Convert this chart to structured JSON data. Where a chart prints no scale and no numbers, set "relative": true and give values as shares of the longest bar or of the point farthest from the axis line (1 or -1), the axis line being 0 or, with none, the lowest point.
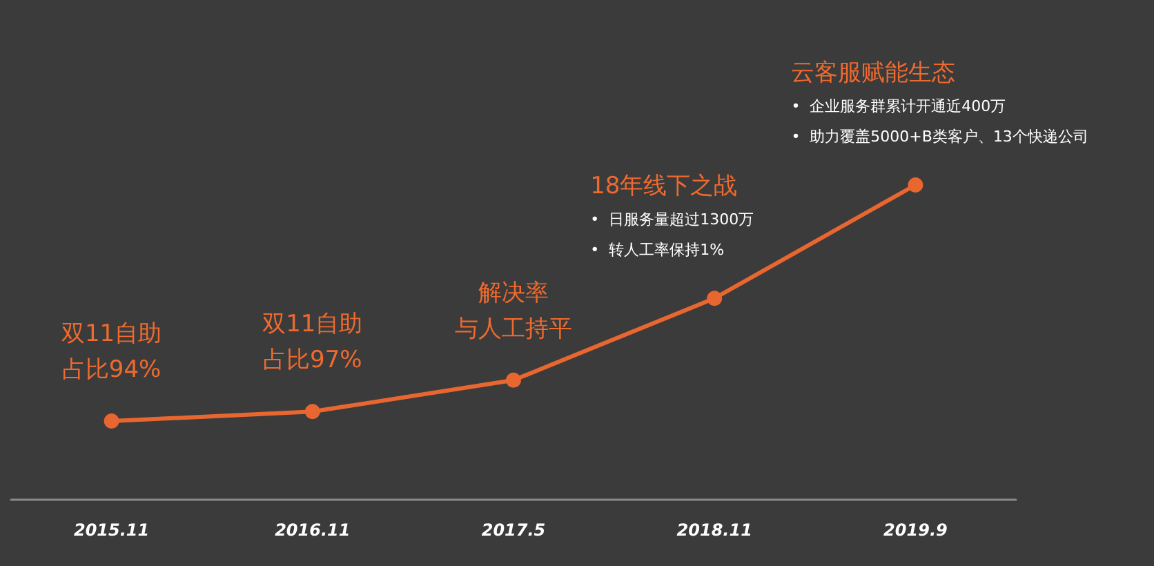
{
  "chart_data": {
    "type": "line",
    "relative": true,
    "marker": "circle",
    "line_style": "solid",
    "grid": false,
    "categories": [
      "2015.11",
      "2016.11",
      "2017.5",
      "2018.11",
      "2019.9"
    ],
    "series": [
      {
        "color": "#e8662f",
        "values": [
          0.25,
          0.28,
          0.38,
          0.64,
          1
        ]
      }
    ],
    "annotations": [
      "双11自助",
      "占比94%",
      "双11自助",
      "占比97%",
      "解决率",
      "与人工持平",
      "18年线下之战",
      "•  日服务量超过1300万",
      "•  转人工率保持1%",
      "云客服赋能生态",
      "•  企业服务群累计开通近400万",
      "•  助力覆盖5000+B类客户、13个快递公司"
    ]
  }
}
